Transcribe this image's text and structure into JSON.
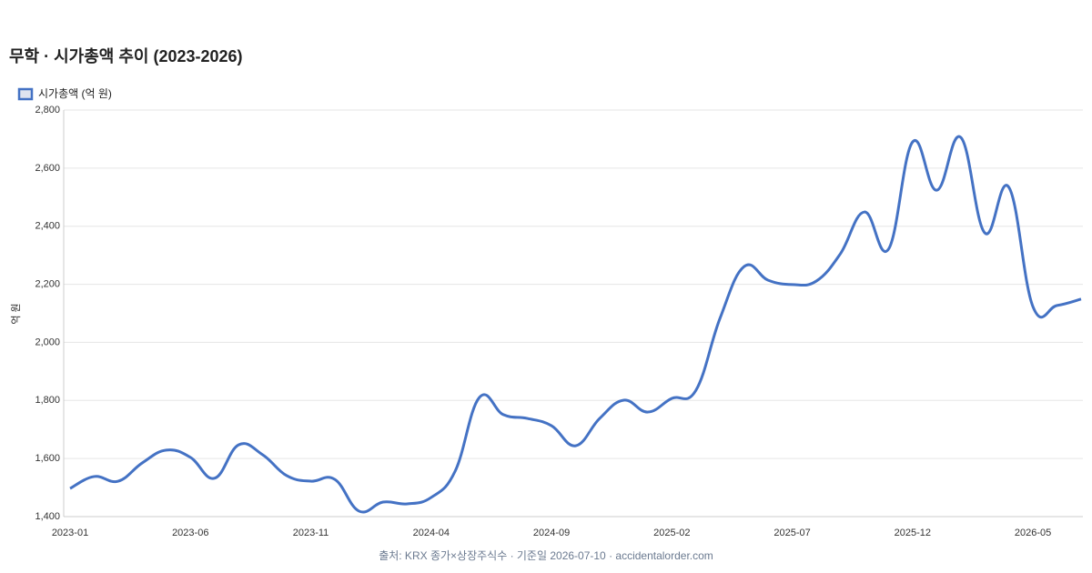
{
  "chart_data": {
    "type": "line",
    "title": "무학 · 시가총액 추이 (2023-2026)",
    "y_label": "억 원",
    "source": "출처: KRX 종가×상장주식수 · 기준일 2026-07-10 · accidentalorder.com",
    "categories": [
      "2023-01",
      null,
      null,
      null,
      null,
      "2023-06",
      null,
      null,
      null,
      null,
      "2023-11",
      null,
      null,
      null,
      null,
      "2024-04",
      null,
      null,
      null,
      null,
      "2024-09",
      null,
      null,
      null,
      null,
      "2025-02",
      null,
      null,
      null,
      null,
      "2025-07",
      null,
      null,
      null,
      null,
      "2025-12",
      null,
      null,
      null,
      null,
      "2026-05",
      null,
      null
    ],
    "series": [
      {
        "name": "시가총액 (억 원)",
        "color": "#4472c4",
        "values": [
          1497,
          1538,
          1522,
          1585,
          1629,
          1604,
          1532,
          1647,
          1613,
          1541,
          1522,
          1528,
          1419,
          1450,
          1444,
          1466,
          1557,
          1810,
          1751,
          1738,
          1713,
          1644,
          1738,
          1801,
          1760,
          1807,
          1835,
          2083,
          2261,
          2214,
          2199,
          2211,
          2305,
          2449,
          2321,
          2690,
          2524,
          2706,
          2377,
          2534,
          2123,
          2127,
          2149
        ]
      }
    ],
    "ylim": [
      1400,
      2800
    ],
    "yticks": [
      {
        "value": 1400,
        "label": "1,400"
      },
      {
        "value": 1600,
        "label": "1,600"
      },
      {
        "value": 1800,
        "label": "1,800"
      },
      {
        "value": 2000,
        "label": "2,000"
      },
      {
        "value": 2200,
        "label": "2,200"
      },
      {
        "value": 2400,
        "label": "2,400"
      },
      {
        "value": 2600,
        "label": "2,600"
      },
      {
        "value": 2800,
        "label": "2,800"
      }
    ],
    "grid": true,
    "legend": "top-left"
  }
}
